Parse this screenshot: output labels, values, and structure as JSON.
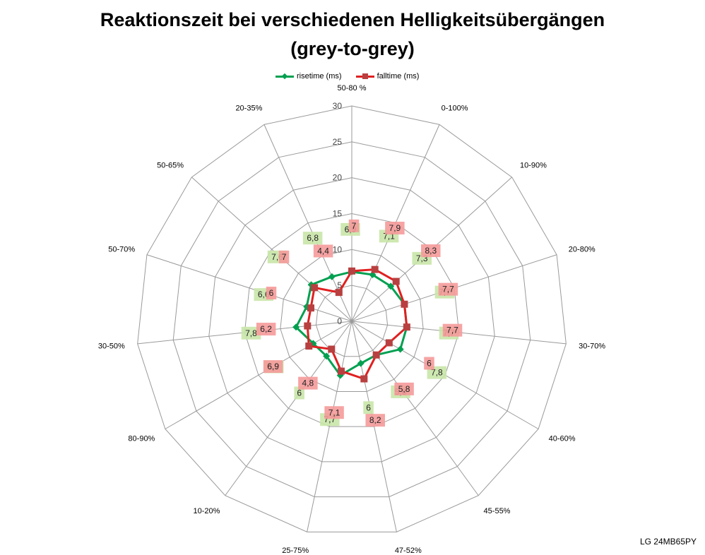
{
  "chart_data": {
    "type": "radar",
    "title_line1": "Reaktionszeit bei verschiedenen Helligkeitsübergängen",
    "title_line2": "(grey-to-grey)",
    "categories": [
      "50-80 %",
      "0-100%",
      "10-90%",
      "20-80%",
      "30-70%",
      "40-60%",
      "45-55%",
      "47-52%",
      "25-75%",
      "10-20%",
      "80-90%",
      "30-50%",
      "50-70%",
      "50-65%",
      "20-35%"
    ],
    "rmax": 30,
    "ticks": [
      0,
      5,
      10,
      15,
      20,
      25,
      30
    ],
    "series": [
      {
        "name": "risetime (ms)",
        "color": "#00a050",
        "label_bg": "#c9e6a8",
        "values": [
          6.9,
          7.1,
          7.3,
          7.7,
          7.7,
          7.8,
          5.8,
          6,
          7.7,
          6,
          6.2,
          7.8,
          6.6,
          7.6,
          6.8
        ],
        "labels": [
          "6,9",
          "7,1",
          "7,3",
          "7,7",
          "7,7",
          "7,8",
          "5,8",
          "6",
          "7,7",
          "6",
          "6,2",
          "7,8",
          "6,6",
          "7,6",
          "6,8"
        ]
      },
      {
        "name": "falltime (ms)",
        "color": "#e02020",
        "label_bg": "#f59a9a",
        "values": [
          7,
          7.9,
          8.3,
          7.7,
          7.7,
          6,
          5.8,
          8.2,
          7.1,
          4.8,
          6.9,
          6.2,
          6,
          7,
          4.4
        ],
        "labels": [
          "7",
          "7,9",
          "8,3",
          "7,7",
          "7,7",
          "6",
          "5,8",
          "8,2",
          "7,1",
          "4,8",
          "6,9",
          "6,2",
          "6",
          "7",
          "4,4"
        ]
      }
    ],
    "legend_position": "top",
    "grid": true
  },
  "footer": "LG 24MB65PY"
}
